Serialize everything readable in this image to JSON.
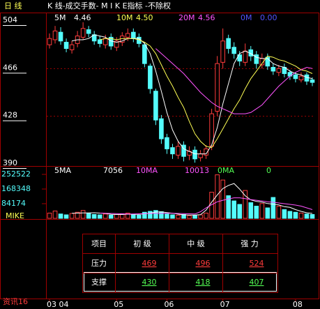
{
  "header": {
    "period": "日 线",
    "title": "K 线-成交手数- M I K E指标 -不除权"
  },
  "chart_data": {
    "type": "candlestick",
    "categories": [
      "03 04",
      null,
      null,
      null,
      null,
      null,
      null,
      null,
      null,
      null,
      null,
      null,
      "05",
      null,
      null,
      null,
      null,
      null,
      null,
      null,
      null,
      "06",
      null,
      null,
      null,
      null,
      null,
      null,
      null,
      null,
      null,
      "07",
      null,
      null,
      null,
      null,
      null,
      null,
      null,
      null,
      null,
      null,
      null,
      null,
      "08",
      null,
      null,
      null
    ],
    "open": [
      485,
      489,
      495,
      487,
      481,
      486,
      491,
      497,
      493,
      489,
      485,
      491,
      483,
      487,
      491,
      495,
      491,
      485,
      468,
      448,
      426,
      411,
      403,
      397,
      405,
      397,
      401,
      395,
      397,
      404,
      432,
      471,
      490,
      483,
      477,
      471,
      481,
      477,
      469,
      475,
      467,
      463,
      467,
      463,
      461,
      457,
      461,
      457
    ],
    "high": [
      494,
      500,
      499,
      490,
      488,
      496,
      503,
      500,
      496,
      492,
      493,
      494,
      491,
      495,
      498,
      498,
      494,
      487,
      470,
      450,
      429,
      414,
      406,
      408,
      408,
      404,
      404,
      401,
      405,
      434,
      476,
      498,
      493,
      487,
      480,
      486,
      484,
      480,
      478,
      478,
      470,
      469,
      470,
      465,
      463,
      463,
      463,
      459
    ],
    "low": [
      482,
      486,
      485,
      479,
      478,
      483,
      489,
      491,
      485,
      483,
      482,
      481,
      480,
      484,
      488,
      487,
      483,
      467,
      446,
      421,
      406,
      398,
      394,
      394,
      392,
      393,
      391,
      392,
      394,
      401,
      428,
      466,
      478,
      474,
      468,
      468,
      472,
      466,
      466,
      465,
      461,
      460,
      459,
      457,
      455,
      455,
      453,
      452
    ],
    "close": [
      490,
      496,
      488,
      482,
      485,
      492,
      498,
      494,
      488,
      486,
      490,
      484,
      488,
      492,
      494,
      490,
      486,
      470,
      450,
      425,
      410,
      402,
      398,
      404,
      396,
      400,
      394,
      398,
      402,
      430,
      470,
      488,
      482,
      478,
      472,
      480,
      476,
      470,
      474,
      468,
      464,
      466,
      462,
      460,
      458,
      460,
      456,
      455
    ],
    "up_color": "#ff3c3c",
    "down_color": "#54fcfc",
    "ylim": [
      390,
      504
    ],
    "yticks": [
      504,
      466,
      428,
      390
    ],
    "ma_series": [
      {
        "name": "5M",
        "label": "4.46",
        "color": "#ffffff",
        "values": [
          null,
          null,
          null,
          null,
          488,
          489,
          489,
          490,
          493,
          492,
          491,
          488,
          487,
          488,
          490,
          490,
          490,
          486,
          478,
          464,
          448,
          431,
          417,
          408,
          402,
          400,
          398,
          398,
          398,
          405,
          419,
          438,
          454,
          470,
          478,
          480,
          478,
          475,
          474,
          474,
          470,
          468,
          467,
          464,
          462,
          461,
          459,
          458
        ]
      },
      {
        "name": "10M",
        "label": "4.50",
        "color": "#ffff54",
        "values": [
          null,
          null,
          null,
          null,
          null,
          null,
          null,
          null,
          null,
          489,
          490,
          490,
          489,
          490,
          490,
          490,
          489,
          487,
          484,
          478,
          469,
          460,
          452,
          443,
          435,
          424,
          414,
          408,
          404,
          403,
          410,
          418,
          426,
          434,
          441,
          450,
          458,
          464,
          470,
          476,
          475,
          473,
          472,
          470,
          468,
          465,
          464,
          462
        ]
      },
      {
        "name": "20M",
        "label": "4.56",
        "color": "#ff54ff",
        "values": [
          null,
          null,
          null,
          null,
          null,
          null,
          null,
          null,
          null,
          null,
          null,
          null,
          null,
          null,
          null,
          null,
          null,
          null,
          null,
          482,
          478,
          474,
          470,
          466,
          462,
          457,
          452,
          447,
          443,
          439,
          436,
          434,
          432,
          430,
          430,
          430,
          431,
          434,
          437,
          442,
          447,
          452,
          456,
          460,
          463,
          465,
          467,
          466
        ]
      },
      {
        "name": "0M",
        "label": "0.00",
        "color": "#5454ff"
      }
    ],
    "volume": [
      30000,
      42000,
      25000,
      20000,
      28000,
      35000,
      45000,
      30000,
      22000,
      20000,
      25000,
      18000,
      22000,
      26000,
      30000,
      20000,
      18000,
      35000,
      40000,
      45000,
      38000,
      25000,
      20000,
      18000,
      22000,
      15000,
      18000,
      20000,
      30000,
      150000,
      250000,
      220000,
      130000,
      100000,
      80000,
      160000,
      90000,
      70000,
      85000,
      60000,
      120000,
      70000,
      50000,
      40000,
      35000,
      30000,
      25000,
      22000
    ],
    "vlim": [
      0,
      336696
    ],
    "vticks": [
      252522,
      168348,
      84174
    ],
    "vol_series": [
      {
        "name": "5MA",
        "label": "7056",
        "color": "#ffffff",
        "values": [
          null,
          null,
          null,
          null,
          29000,
          30000,
          31000,
          31000,
          32000,
          30000,
          28000,
          23000,
          22000,
          22000,
          24000,
          23000,
          23000,
          26000,
          30000,
          36000,
          37000,
          33000,
          29000,
          24000,
          20000,
          19000,
          19000,
          21000,
          47000,
          93000,
          134000,
          171000,
          189000,
          200000,
          168000,
          130000,
          106000,
          97000,
          93000,
          85000,
          81000,
          77000,
          67000,
          63000,
          50000,
          40000,
          32000,
          28000
        ]
      },
      {
        "name": "10MA",
        "label": "10013",
        "color": "#ff54ff",
        "values": [
          null,
          null,
          null,
          null,
          null,
          null,
          null,
          null,
          null,
          30000,
          29000,
          28000,
          27000,
          26000,
          25000,
          25000,
          26000,
          27000,
          28000,
          28000,
          28000,
          29000,
          29000,
          28000,
          27000,
          26000,
          25000,
          38000,
          60000,
          78000,
          95000,
          104000,
          112000,
          118000,
          118000,
          113000,
          108000,
          104000,
          100000,
          95000,
          92000,
          88000,
          84000,
          80000,
          76000,
          70000,
          60000,
          50000
        ]
      },
      {
        "name": "0MA",
        "label": "0",
        "color": "#54ff54"
      }
    ],
    "indicator": "MIKE"
  },
  "table": {
    "header": [
      "项目",
      "初 级",
      "中 级",
      "强 力"
    ],
    "rows": [
      [
        "压力",
        "469",
        "496",
        "524"
      ],
      [
        "支撑",
        "430",
        "418",
        "407"
      ]
    ]
  },
  "footer": {
    "news": "资讯16"
  }
}
